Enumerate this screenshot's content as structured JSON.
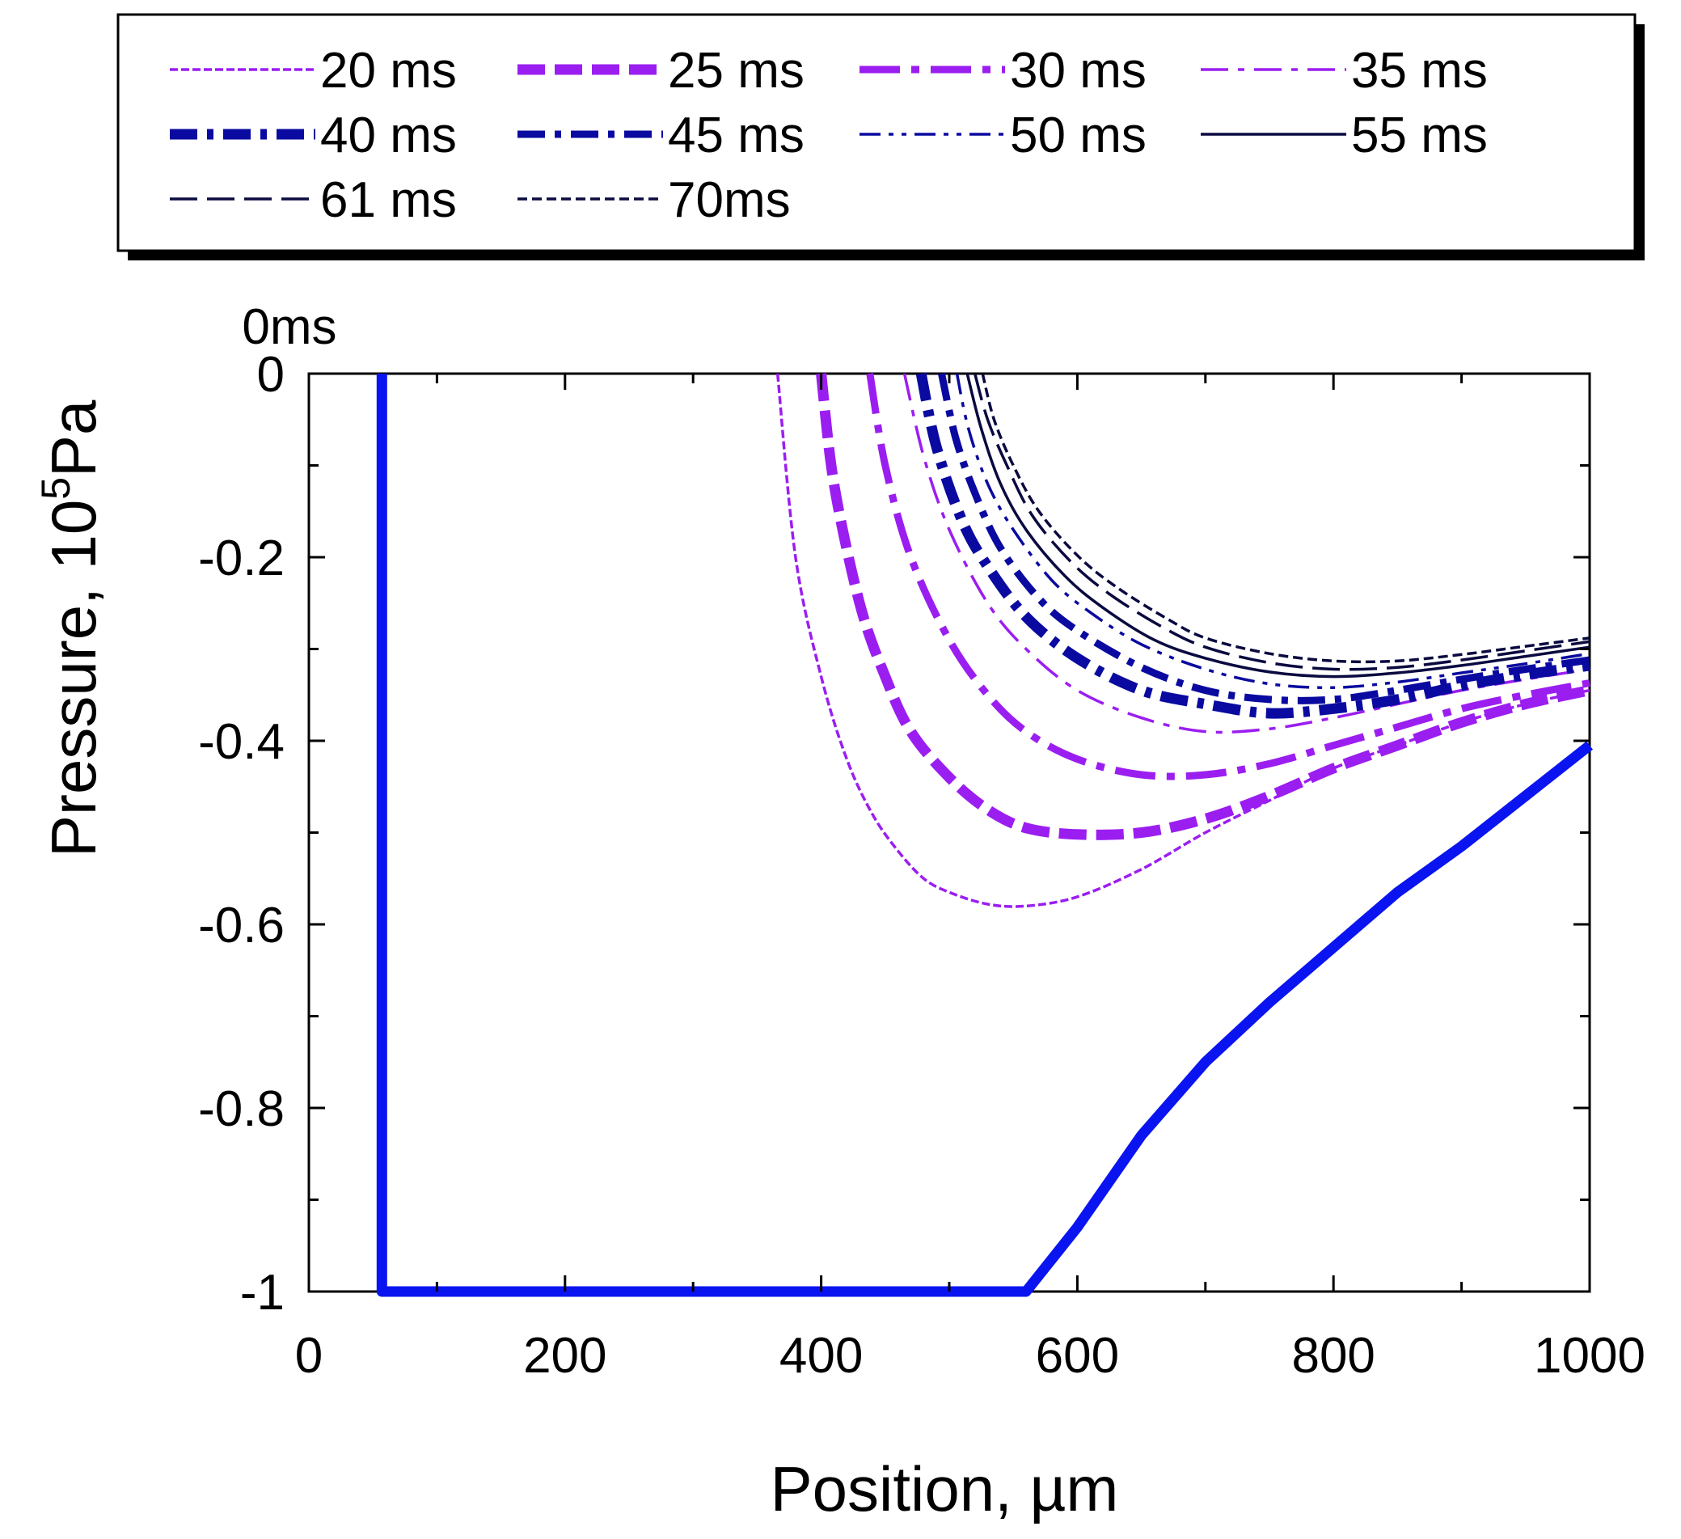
{
  "chart_data": {
    "type": "line",
    "title": "",
    "xlabel": "Position, µm",
    "ylabel_main": "Pressure, 10",
    "ylabel_sup": "5",
    "ylabel_tail": "Pa",
    "xlim": [
      0,
      1000
    ],
    "ylim": [
      -1,
      0
    ],
    "xticks": [
      0,
      200,
      400,
      600,
      800,
      1000
    ],
    "yticks": [
      0,
      -0.2,
      -0.4,
      -0.6,
      -0.8,
      -1
    ],
    "xtick_labels": [
      "0",
      "200",
      "400",
      "600",
      "800",
      "1000"
    ],
    "ytick_labels": [
      "0",
      "-0.2",
      "-0.4",
      "-0.6",
      "-0.8",
      "-1"
    ],
    "annotation": "0ms",
    "grid": false,
    "legend_position": "top",
    "series": [
      {
        "name": "0ms",
        "color": "#0a14f0",
        "style": "solid",
        "width": "thick",
        "x": [
          57,
          57,
          560,
          600,
          650,
          700,
          750,
          800,
          850,
          900,
          950,
          1000
        ],
        "y": [
          0,
          -1,
          -1,
          -0.93,
          -0.83,
          -0.75,
          -0.685,
          -0.625,
          -0.565,
          -0.515,
          -0.46,
          -0.405
        ]
      },
      {
        "name": "20 ms",
        "color": "#9b1ef0",
        "style": "dashed-fine",
        "width": "thin",
        "x": [
          366,
          380,
          400,
          420,
          440,
          460,
          480,
          500,
          530,
          560,
          600,
          650,
          700,
          750,
          800,
          850,
          900,
          950,
          1000
        ],
        "y": [
          0,
          -0.2,
          -0.33,
          -0.42,
          -0.48,
          -0.52,
          -0.55,
          -0.565,
          -0.578,
          -0.58,
          -0.57,
          -0.54,
          -0.5,
          -0.465,
          -0.43,
          -0.405,
          -0.38,
          -0.36,
          -0.345
        ]
      },
      {
        "name": "25 ms",
        "color": "#9b1ef0",
        "style": "dashed",
        "width": "thick",
        "x": [
          400,
          410,
          430,
          450,
          470,
          500,
          530,
          560,
          600,
          650,
          700,
          750,
          800,
          850,
          900,
          950,
          1000
        ],
        "y": [
          0,
          -0.12,
          -0.25,
          -0.33,
          -0.39,
          -0.44,
          -0.475,
          -0.495,
          -0.502,
          -0.5,
          -0.485,
          -0.46,
          -0.43,
          -0.405,
          -0.38,
          -0.36,
          -0.345
        ]
      },
      {
        "name": "30 ms",
        "color": "#9b1ef0",
        "style": "long-dash-dot",
        "width": "medium",
        "x": [
          438,
          450,
          470,
          500,
          530,
          560,
          600,
          650,
          700,
          750,
          800,
          850,
          900,
          950,
          1000
        ],
        "y": [
          0,
          -0.1,
          -0.2,
          -0.29,
          -0.35,
          -0.39,
          -0.42,
          -0.437,
          -0.437,
          -0.425,
          -0.405,
          -0.385,
          -0.365,
          -0.35,
          -0.337
        ]
      },
      {
        "name": "35 ms",
        "color": "#9b1ef0",
        "style": "dash-dot",
        "width": "thin",
        "x": [
          465,
          480,
          500,
          530,
          560,
          600,
          650,
          700,
          750,
          800,
          850,
          900,
          950,
          1000
        ],
        "y": [
          0,
          -0.09,
          -0.17,
          -0.25,
          -0.3,
          -0.345,
          -0.375,
          -0.39,
          -0.387,
          -0.375,
          -0.36,
          -0.345,
          -0.333,
          -0.322
        ]
      },
      {
        "name": "40 ms",
        "color": "#0a0aa0",
        "style": "dash-dot",
        "width": "thick",
        "x": [
          478,
          490,
          510,
          530,
          560,
          600,
          650,
          700,
          750,
          800,
          850,
          900,
          950,
          1000
        ],
        "y": [
          0,
          -0.08,
          -0.16,
          -0.21,
          -0.265,
          -0.31,
          -0.345,
          -0.36,
          -0.37,
          -0.365,
          -0.355,
          -0.34,
          -0.328,
          -0.318
        ]
      },
      {
        "name": "45 ms",
        "color": "#0a0aa0",
        "style": "dash-dot",
        "width": "medium",
        "x": [
          494,
          505,
          520,
          540,
          570,
          600,
          650,
          700,
          750,
          800,
          850,
          900,
          950,
          1000
        ],
        "y": [
          0,
          -0.07,
          -0.13,
          -0.19,
          -0.245,
          -0.28,
          -0.32,
          -0.345,
          -0.355,
          -0.355,
          -0.345,
          -0.333,
          -0.322,
          -0.312
        ]
      },
      {
        "name": "50 ms",
        "color": "#0a0aa0",
        "style": "dash-dot-dot",
        "width": "thin",
        "x": [
          506,
          515,
          530,
          550,
          580,
          610,
          650,
          700,
          750,
          800,
          850,
          900,
          950,
          1000
        ],
        "y": [
          0,
          -0.06,
          -0.12,
          -0.17,
          -0.225,
          -0.26,
          -0.295,
          -0.322,
          -0.338,
          -0.342,
          -0.336,
          -0.326,
          -0.316,
          -0.305
        ]
      },
      {
        "name": "55 ms",
        "color": "#0a0a40",
        "style": "solid",
        "width": "thin",
        "x": [
          514,
          525,
          540,
          560,
          590,
          620,
          660,
          700,
          750,
          800,
          850,
          900,
          950,
          1000
        ],
        "y": [
          0,
          -0.06,
          -0.12,
          -0.17,
          -0.22,
          -0.255,
          -0.29,
          -0.31,
          -0.325,
          -0.33,
          -0.326,
          -0.318,
          -0.308,
          -0.298
        ]
      },
      {
        "name": "61 ms",
        "color": "#0a0a40",
        "style": "dashed",
        "width": "thin",
        "x": [
          520,
          530,
          545,
          565,
          595,
          625,
          665,
          700,
          750,
          800,
          850,
          900,
          950,
          1000
        ],
        "y": [
          0,
          -0.05,
          -0.1,
          -0.155,
          -0.205,
          -0.24,
          -0.275,
          -0.298,
          -0.315,
          -0.322,
          -0.32,
          -0.312,
          -0.302,
          -0.292
        ]
      },
      {
        "name": "70ms",
        "color": "#0a0a40",
        "style": "dotted-dash",
        "width": "thin",
        "x": [
          526,
          535,
          550,
          570,
          600,
          630,
          670,
          700,
          750,
          800,
          850,
          900,
          950,
          1000
        ],
        "y": [
          0,
          -0.05,
          -0.1,
          -0.15,
          -0.198,
          -0.232,
          -0.267,
          -0.288,
          -0.305,
          -0.313,
          -0.313,
          -0.306,
          -0.297,
          -0.288
        ]
      }
    ]
  }
}
